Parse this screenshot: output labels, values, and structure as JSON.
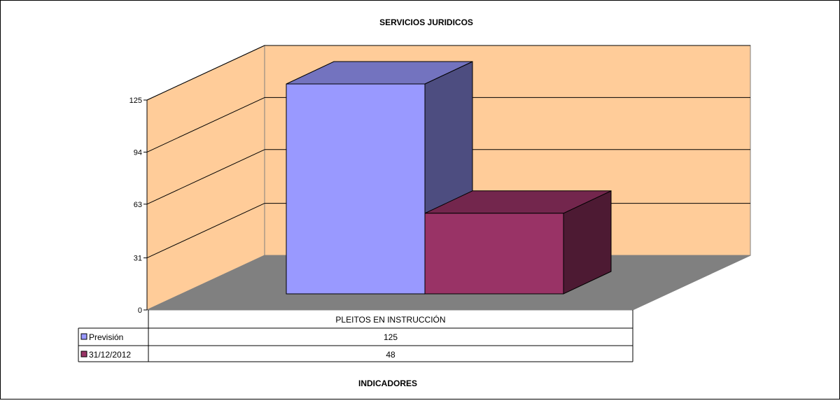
{
  "chart_data": {
    "type": "bar",
    "title": "SERVICIOS JURIDICOS",
    "xlabel": "INDICADORES",
    "ylabel": "",
    "categories": [
      "PLEITOS EN INSTRUCCIÓN"
    ],
    "series": [
      {
        "name": "Previsión",
        "values": [
          125
        ],
        "color": "#9999ff"
      },
      {
        "name": "31/12/2012",
        "values": [
          48
        ],
        "color": "#993366"
      }
    ],
    "yticks": [
      "0",
      "31",
      "63",
      "94",
      "125"
    ],
    "ylim": [
      0,
      125
    ],
    "grid": true,
    "legend_placement": "data-table-left",
    "data_table": true,
    "wall_color": "#ffcc99",
    "floor_color": "#808080"
  }
}
